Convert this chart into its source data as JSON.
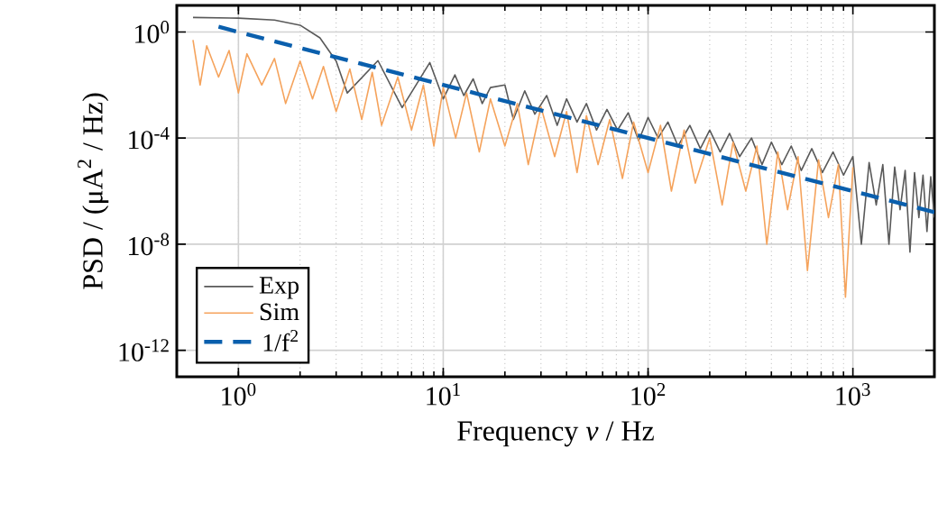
{
  "chart_data": {
    "type": "line",
    "xlabel": "Frequency *ν* / Hz",
    "ylabel": "PSD / (μA$^{2}$ / Hz)",
    "log": "xy",
    "grid": true,
    "legend": "bottom left",
    "xlim": [
      0.5,
      2500
    ],
    "ylim": [
      1e-13,
      10
    ],
    "xticks": [
      {
        "value": 1,
        "label": "10$^{0}$"
      },
      {
        "value": 10,
        "label": "10$^{1}$"
      },
      {
        "value": 100,
        "label": "10$^{2}$"
      },
      {
        "value": 1000,
        "label": "10$^{3}$"
      }
    ],
    "yticks": [
      {
        "value": 1e-12,
        "label": "10$^{-12}$"
      },
      {
        "value": 1e-08,
        "label": "10$^{-8}$"
      },
      {
        "value": 0.0001,
        "label": "10$^{-4}$"
      },
      {
        "value": 1,
        "label": "10$^{0}$"
      }
    ],
    "series": [
      {
        "name": "Exp",
        "color": "#595959",
        "line_style": "solid",
        "x": [
          0.6,
          1,
          1.5,
          2,
          2.5,
          3,
          3.4,
          4.8,
          6.3,
          8.6,
          10,
          11.4,
          12.6,
          14,
          15.5,
          17,
          20,
          22,
          25,
          28,
          32,
          36,
          40,
          45,
          50,
          56,
          63,
          71,
          80,
          90,
          100,
          112,
          125,
          140,
          160,
          180,
          200,
          225,
          250,
          280,
          320,
          360,
          400,
          450,
          500,
          560,
          630,
          710,
          800,
          900,
          1000,
          1100,
          1200,
          1300,
          1400,
          1500,
          1600,
          1700,
          1800,
          1900,
          2000,
          2100,
          2200,
          2300,
          2400,
          2500
        ],
        "values": [
          3.5,
          3.3,
          2.8,
          1.8,
          0.6,
          0.08,
          0.005,
          0.083,
          0.0014,
          0.07,
          0.003,
          0.024,
          0.004,
          0.017,
          0.002,
          0.008,
          0.01,
          0.0005,
          0.006,
          0.0008,
          0.004,
          0.0003,
          0.003,
          0.0004,
          0.002,
          0.0002,
          0.0012,
          0.0002,
          0.0009,
          8e-05,
          0.0006,
          0.0001,
          0.0004,
          5e-05,
          0.0003,
          4e-05,
          0.0002,
          3e-05,
          0.00015,
          2e-05,
          0.0001,
          1e-05,
          7e-05,
          1e-05,
          5e-05,
          6e-06,
          4e-05,
          5e-06,
          3e-05,
          4e-06,
          2e-05,
          1e-08,
          1.2e-05,
          3e-07,
          1e-05,
          1e-08,
          8e-06,
          2e-07,
          6e-06,
          5e-09,
          5e-06,
          1e-07,
          4e-06,
          3e-08,
          3.5e-06,
          1e-07
        ]
      },
      {
        "name": "Sim",
        "color": "#f5a35c",
        "line_style": "solid",
        "x": [
          0.6,
          0.65,
          0.7,
          0.8,
          0.9,
          1.0,
          1.1,
          1.3,
          1.5,
          1.7,
          2,
          2.3,
          2.6,
          3,
          3.5,
          4,
          4.5,
          5,
          6,
          7,
          8,
          9,
          10,
          11.5,
          13,
          15,
          17,
          20,
          23,
          26,
          30,
          35,
          40,
          45,
          50,
          57,
          65,
          75,
          85,
          100,
          115,
          130,
          150,
          170,
          200,
          230,
          260,
          300,
          340,
          380,
          430,
          480,
          540,
          600,
          680,
          760,
          850,
          920,
          1000
        ],
        "values": [
          0.5,
          0.01,
          0.3,
          0.02,
          0.2,
          0.005,
          0.15,
          0.01,
          0.1,
          0.002,
          0.08,
          0.003,
          0.05,
          0.001,
          0.04,
          0.0005,
          0.03,
          0.0003,
          0.02,
          0.0002,
          0.01,
          5e-05,
          0.008,
          0.0001,
          0.005,
          3e-05,
          0.003,
          5e-05,
          0.002,
          1e-05,
          0.0015,
          2e-05,
          0.001,
          5e-06,
          0.0007,
          1e-05,
          0.0005,
          3e-06,
          0.0004,
          5e-06,
          0.0003,
          1e-06,
          0.0002,
          2e-06,
          0.0001,
          3e-07,
          7e-05,
          1e-06,
          5e-05,
          1e-08,
          3e-05,
          2e-07,
          2e-05,
          1e-09,
          1.5e-05,
          1e-07,
          1e-05,
          1e-10,
          8e-06
        ]
      },
      {
        "name": "1/f$^{2}$",
        "color": "#0a5fad",
        "line_style": "dashed",
        "x": [
          0.8,
          2500
        ],
        "values": [
          1.56,
          1.6e-07
        ]
      }
    ]
  }
}
